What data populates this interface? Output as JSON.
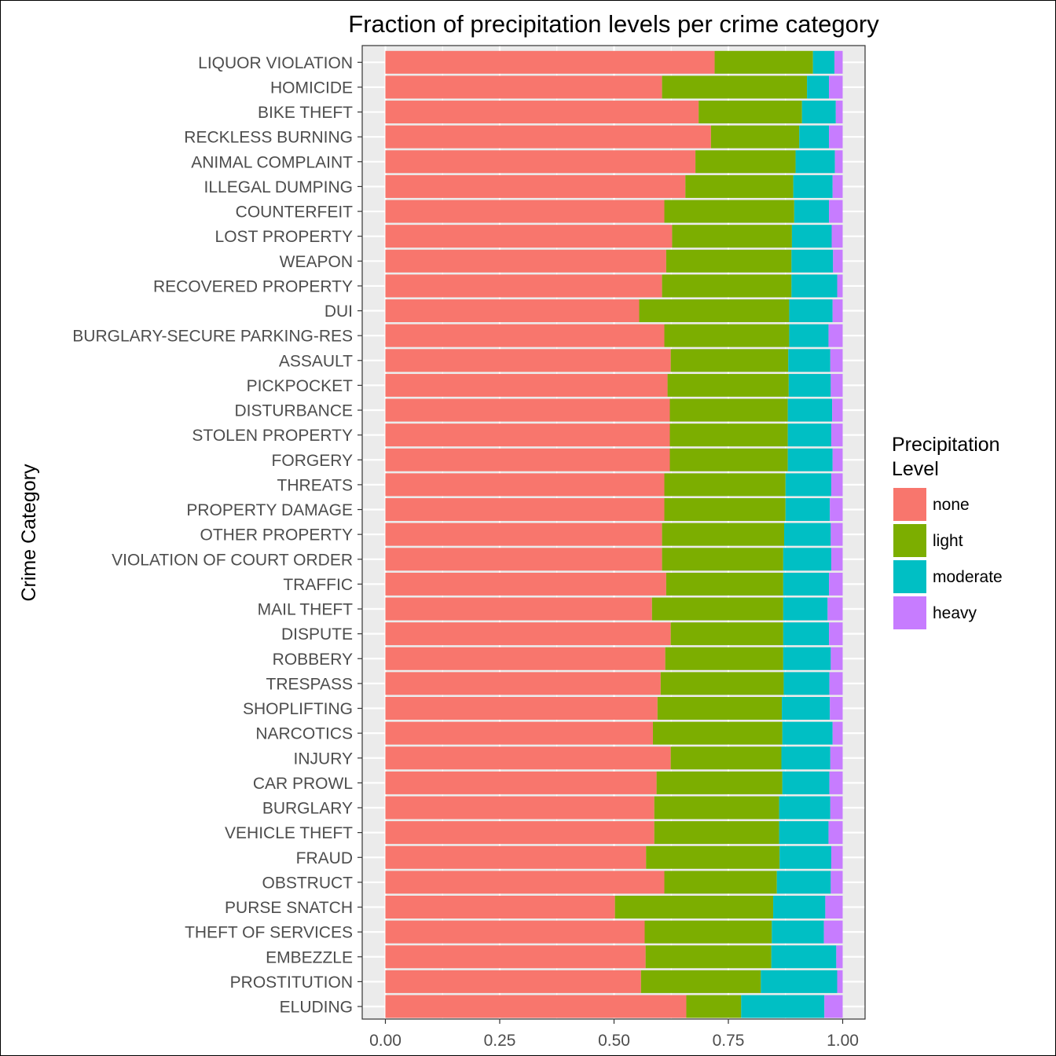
{
  "chart_data": {
    "type": "bar",
    "orientation": "horizontal",
    "stacked": true,
    "title": "Fraction of precipitation levels per crime category",
    "xlabel": "",
    "ylabel": "Crime Category",
    "xlim": [
      0,
      1
    ],
    "xticks": [
      "0.00",
      "0.25",
      "0.50",
      "0.75",
      "1.00"
    ],
    "grid": true,
    "legend_position": "right",
    "legend_title": "Precipitation Level",
    "categories": [
      "LIQUOR VIOLATION",
      "HOMICIDE",
      "BIKE THEFT",
      "RECKLESS BURNING",
      "ANIMAL COMPLAINT",
      "ILLEGAL DUMPING",
      "COUNTERFEIT",
      "LOST PROPERTY",
      "WEAPON",
      "RECOVERED PROPERTY",
      "DUI",
      "BURGLARY-SECURE PARKING-RES",
      "ASSAULT",
      "PICKPOCKET",
      "DISTURBANCE",
      "STOLEN PROPERTY",
      "FORGERY",
      "THREATS",
      "PROPERTY DAMAGE",
      "OTHER PROPERTY",
      "VIOLATION OF COURT ORDER",
      "TRAFFIC",
      "MAIL THEFT",
      "DISPUTE",
      "ROBBERY",
      "TRESPASS",
      "SHOPLIFTING",
      "NARCOTICS",
      "INJURY",
      "CAR PROWL",
      "BURGLARY",
      "VEHICLE THEFT",
      "FRAUD",
      "OBSTRUCT",
      "PURSE SNATCH",
      "THEFT OF SERVICES",
      "EMBEZZLE",
      "PROSTITUTION",
      "ELUDING"
    ],
    "series": [
      {
        "name": "none",
        "color": "#F8766D",
        "values": [
          0.72,
          0.605,
          0.685,
          0.712,
          0.678,
          0.656,
          0.61,
          0.627,
          0.614,
          0.605,
          0.555,
          0.61,
          0.624,
          0.617,
          0.622,
          0.622,
          0.622,
          0.61,
          0.61,
          0.605,
          0.605,
          0.614,
          0.583,
          0.624,
          0.612,
          0.602,
          0.595,
          0.585,
          0.624,
          0.593,
          0.588,
          0.588,
          0.57,
          0.61,
          0.502,
          0.567,
          0.569,
          0.559,
          0.658
        ]
      },
      {
        "name": "light",
        "color": "#7CAE00",
        "values": [
          0.215,
          0.317,
          0.226,
          0.193,
          0.219,
          0.236,
          0.284,
          0.262,
          0.274,
          0.283,
          0.328,
          0.273,
          0.257,
          0.265,
          0.258,
          0.258,
          0.258,
          0.265,
          0.265,
          0.267,
          0.265,
          0.256,
          0.287,
          0.246,
          0.258,
          0.269,
          0.272,
          0.283,
          0.242,
          0.275,
          0.273,
          0.273,
          0.292,
          0.246,
          0.346,
          0.278,
          0.275,
          0.262,
          0.12
        ]
      },
      {
        "name": "moderate",
        "color": "#00BFC4",
        "values": [
          0.047,
          0.048,
          0.074,
          0.065,
          0.086,
          0.086,
          0.076,
          0.087,
          0.091,
          0.1,
          0.095,
          0.086,
          0.092,
          0.092,
          0.097,
          0.095,
          0.098,
          0.1,
          0.097,
          0.102,
          0.105,
          0.1,
          0.097,
          0.1,
          0.104,
          0.1,
          0.105,
          0.11,
          0.107,
          0.103,
          0.112,
          0.108,
          0.113,
          0.118,
          0.114,
          0.114,
          0.142,
          0.167,
          0.182
        ]
      },
      {
        "name": "heavy",
        "color": "#C77CFF",
        "values": [
          0.018,
          0.03,
          0.015,
          0.03,
          0.017,
          0.022,
          0.03,
          0.024,
          0.021,
          0.012,
          0.022,
          0.031,
          0.027,
          0.026,
          0.023,
          0.025,
          0.022,
          0.025,
          0.028,
          0.026,
          0.025,
          0.03,
          0.033,
          0.03,
          0.026,
          0.029,
          0.028,
          0.022,
          0.027,
          0.029,
          0.027,
          0.031,
          0.025,
          0.026,
          0.038,
          0.041,
          0.014,
          0.012,
          0.04
        ]
      }
    ]
  }
}
